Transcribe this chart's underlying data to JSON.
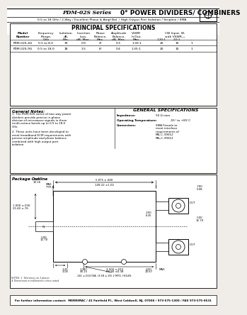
{
  "title_series": "PDM-02S Series",
  "title_main": "0° POWER DIVIDERS/ COMBINERS",
  "subtitle": "0.5 to 18 GHz / 2-Way / Excellent Phase & Ampl Bal. / High Output Port Isolation / Stripline / SMA",
  "bg_color": "#f0ede8",
  "principal_specs_title": "PRINCIPAL SPECIFICATIONS",
  "rows": [
    [
      "PDM-02S-4G",
      "0.5 to 8.0",
      "19",
      "0.9",
      "4°",
      "0.3",
      "1.30:1",
      "20",
      "10",
      "1"
    ],
    [
      "PDM-02S-9G",
      "0.5 to 18.0",
      "18",
      "1.5",
      "8°",
      "0.4",
      "1.35:1",
      "20",
      "10",
      "1"
    ]
  ],
  "general_notes_title": "General Notes:",
  "general_notes": [
    "1. The PDM-02S series of two-way power dividers provide precise in-phase division of microwave signals in three multi-octave bands up to 0.5 to 18.0 GHz.",
    "2. These units have been developed to meet broadband ECM requirements with precise amplitude and phase balance combined with high output port isolation."
  ],
  "general_specs_title": "GENERAL SPECIFICATIONS",
  "general_specs": [
    [
      "Impedance:",
      "50 Ω nom."
    ],
    [
      "Operating Temperature:",
      "-55° to +85°C"
    ],
    [
      "Connectors:",
      "SMA Female to\nmeet interface\nrequirements of\nMIL-C-39012"
    ]
  ],
  "package_outline_title": "Package Outline",
  "footer": "For further information contact:  MERRIMAC / 41 Fairfield Pl., West Caldwell, NJ, 07006 / 973-575-1300 / FAX 973-575-0531"
}
